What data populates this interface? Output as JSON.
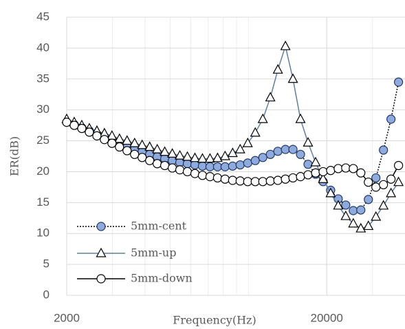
{
  "chart_data": {
    "type": "line",
    "x_label": "Frequency(Hz)",
    "y_label": "ER(dB)",
    "x_scale": "log",
    "xlim": [
      2000,
      40000
    ],
    "xticks": [
      2000,
      20000
    ],
    "minor_grid": true,
    "ylim": [
      0,
      45
    ],
    "yticks": [
      0,
      5,
      10,
      15,
      20,
      25,
      30,
      35,
      40,
      45
    ],
    "grid": true,
    "legend": "lower left",
    "x": [
      2000,
      2138,
      2286,
      2444,
      2613,
      2793,
      2986,
      3192,
      3413,
      3649,
      3901,
      4170,
      4458,
      4766,
      5095,
      5447,
      5823,
      6225,
      6655,
      7115,
      7606,
      8131,
      8693,
      9293,
      9935,
      10621,
      11355,
      12139,
      12977,
      13873,
      14831,
      15855,
      16950,
      18121,
      19372,
      20710,
      22140,
      23669,
      25303,
      27050,
      28918,
      30915,
      33050,
      35332,
      37772
    ],
    "series": [
      {
        "name": "5mm-cent",
        "color": "#8faadc",
        "line_color": "#000000",
        "line_style": "dotted",
        "marker": "circle",
        "values": [
          28,
          27.6,
          27.1,
          26.6,
          26,
          25.5,
          25,
          24.5,
          24,
          23.6,
          23.2,
          22.8,
          22.4,
          22.1,
          21.8,
          21.5,
          21.3,
          21.1,
          20.9,
          20.8,
          20.8,
          20.8,
          20.9,
          21.1,
          21.4,
          21.8,
          22.3,
          22.8,
          23.3,
          23.6,
          23.6,
          22.8,
          21.2,
          19.6,
          18.4,
          17,
          15.6,
          14.6,
          13.7,
          13.8,
          15.5,
          19,
          23.5,
          28.5,
          34.5
        ]
      },
      {
        "name": "5mm-up",
        "color": "#ffffff",
        "line_color": "#5b7fa6",
        "line_style": "solid",
        "marker": "triangle",
        "values": [
          28.5,
          28,
          27.5,
          27,
          26.6,
          26.2,
          25.8,
          25.3,
          25,
          24.6,
          24.3,
          24,
          23.6,
          23.2,
          22.9,
          22.6,
          22.4,
          22.2,
          22.1,
          22.1,
          22.2,
          22.5,
          23,
          23.6,
          24.6,
          26.3,
          28.5,
          32,
          36.5,
          40.3,
          35,
          28.5,
          24.7,
          21.5,
          18.8,
          16.5,
          14.5,
          12.8,
          11.6,
          10.8,
          11.2,
          12.7,
          14.5,
          16.5,
          18.3
        ]
      },
      {
        "name": "5mm-down",
        "color": "#ffffff",
        "line_color": "#000000",
        "line_style": "solid",
        "marker": "circle",
        "values": [
          28,
          27.5,
          27,
          26.4,
          25.8,
          25.2,
          24.6,
          24,
          23.4,
          22.8,
          22.3,
          21.8,
          21.3,
          21,
          20.6,
          20.3,
          20,
          19.7,
          19.4,
          19.2,
          19,
          18.8,
          18.6,
          18.5,
          18.4,
          18.4,
          18.4,
          18.5,
          18.6,
          18.8,
          19,
          19.2,
          19.5,
          19.8,
          20,
          20.2,
          20.5,
          20.6,
          20.5,
          19.8,
          18.3,
          17.5,
          17.9,
          18.8,
          21
        ]
      }
    ]
  }
}
